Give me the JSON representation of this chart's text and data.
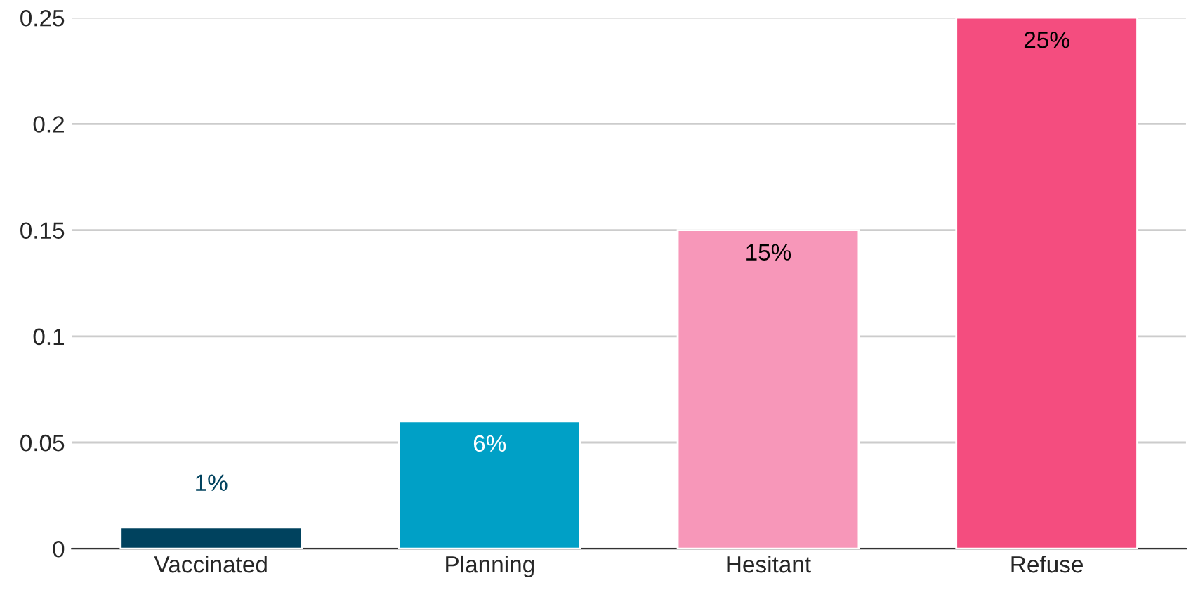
{
  "chart_data": {
    "type": "bar",
    "categories": [
      "Vaccinated",
      "Planning",
      "Hesitant",
      "Refuse"
    ],
    "values": [
      0.01,
      0.06,
      0.15,
      0.25
    ],
    "colors": [
      "#00425e",
      "#00a0c6",
      "#f797b9",
      "#f44d7f"
    ],
    "value_labels": [
      "1%",
      "6%",
      "15%",
      "25%"
    ],
    "ylim": [
      0,
      0.25
    ],
    "yticks": [
      0,
      0.05,
      {
        "value": 0.1,
        "label": "0.1"
      },
      0.15,
      {
        "value": 0.2,
        "label": "0.2"
      },
      0.25
    ],
    "grid": "y",
    "legend": false
  }
}
